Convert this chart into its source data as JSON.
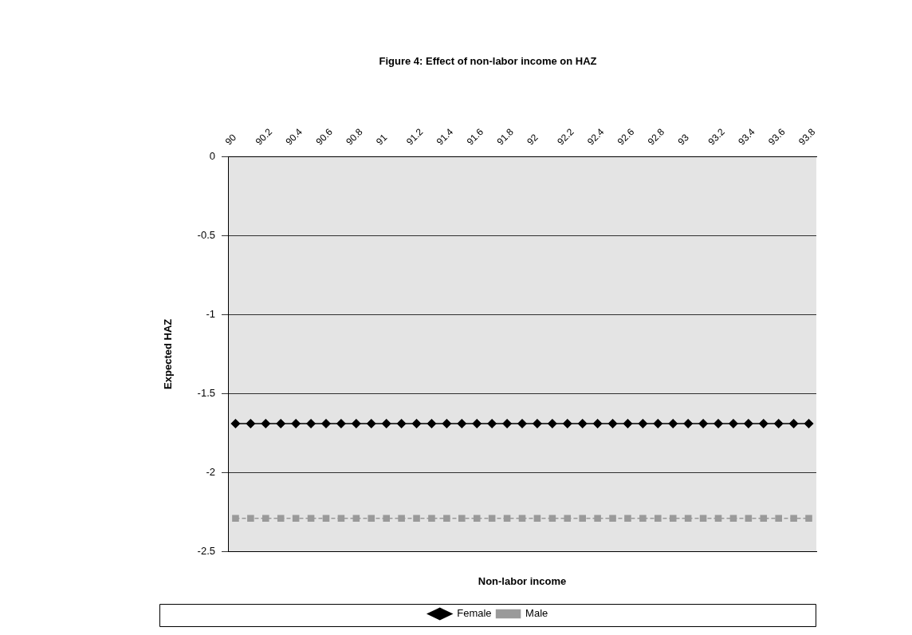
{
  "chart_data": {
    "type": "line",
    "title": "Figure 4: Effect of non-labor income on HAZ",
    "xlabel": "Non-labor income",
    "ylabel": "Expected HAZ",
    "categories": [
      "90",
      null,
      "90.2",
      null,
      "90.4",
      null,
      "90.6",
      null,
      "90.8",
      null,
      "91",
      null,
      "91.2",
      null,
      "91.4",
      null,
      "91.6",
      null,
      "91.8",
      null,
      "92",
      null,
      "92.2",
      null,
      "92.4",
      null,
      "92.6",
      null,
      "92.8",
      null,
      "93",
      null,
      "93.2",
      null,
      "93.4",
      null,
      "93.6",
      null,
      "93.8"
    ],
    "series": [
      {
        "name": "Female",
        "color": "#000000",
        "marker": "diamond",
        "line_style": "solid",
        "values": [
          -1.69,
          -1.69,
          -1.69,
          -1.69,
          -1.69,
          -1.69,
          -1.69,
          -1.69,
          -1.69,
          -1.69,
          -1.69,
          -1.69,
          -1.69,
          -1.69,
          -1.69,
          -1.69,
          -1.69,
          -1.69,
          -1.69,
          -1.69,
          -1.69,
          -1.69,
          -1.69,
          -1.69,
          -1.69,
          -1.69,
          -1.69,
          -1.69,
          -1.69,
          -1.69,
          -1.69,
          -1.69,
          -1.69,
          -1.69,
          -1.69,
          -1.69,
          -1.69,
          -1.69,
          -1.69
        ]
      },
      {
        "name": "Male",
        "color": "#9a9a9a",
        "marker": "square",
        "line_style": "dashed",
        "values": [
          -2.29,
          -2.29,
          -2.29,
          -2.29,
          -2.29,
          -2.29,
          -2.29,
          -2.29,
          -2.29,
          -2.29,
          -2.29,
          -2.29,
          -2.29,
          -2.29,
          -2.29,
          -2.29,
          -2.29,
          -2.29,
          -2.29,
          -2.29,
          -2.29,
          -2.29,
          -2.29,
          -2.29,
          -2.29,
          -2.29,
          -2.29,
          -2.29,
          -2.29,
          -2.29,
          -2.29,
          -2.29,
          -2.29,
          -2.29,
          -2.29,
          -2.29,
          -2.29,
          -2.29,
          -2.29
        ]
      }
    ],
    "ylim": [
      -2.5,
      0
    ],
    "yticks": [
      0,
      -0.5,
      -1,
      -1.5,
      -2,
      -2.5
    ],
    "grid": "y",
    "legend": "bottom"
  }
}
